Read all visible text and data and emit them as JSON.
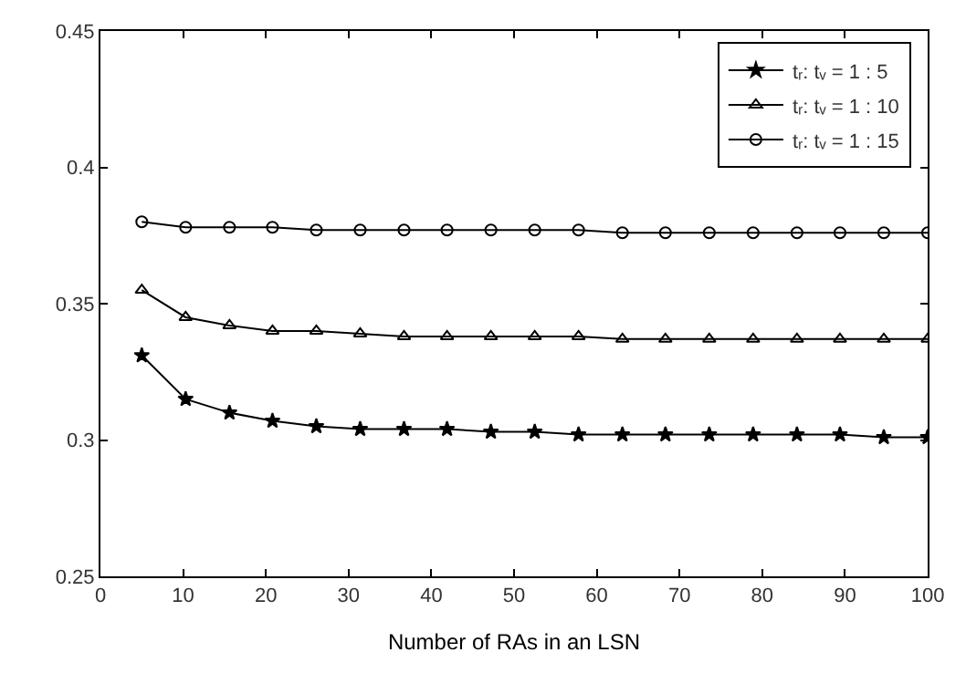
{
  "chart_data": {
    "type": "line",
    "xlabel": "Number of RAs in an LSN",
    "x": [
      5,
      10.3,
      15.6,
      20.8,
      26.1,
      31.4,
      36.7,
      41.9,
      47.2,
      52.5,
      57.8,
      63.1,
      68.3,
      73.6,
      78.9,
      84.2,
      89.4,
      94.7,
      100
    ],
    "series": [
      {
        "name": "tᵣ: tᵥ = 1 : 5",
        "color": "#000000",
        "marker": "star",
        "values": [
          0.331,
          0.315,
          0.31,
          0.307,
          0.305,
          0.304,
          0.304,
          0.304,
          0.303,
          0.303,
          0.302,
          0.302,
          0.302,
          0.302,
          0.302,
          0.302,
          0.302,
          0.301,
          0.301
        ]
      },
      {
        "name": "tᵣ: tᵥ = 1 : 10",
        "color": "#000000",
        "marker": "triangle",
        "values": [
          0.355,
          0.345,
          0.342,
          0.34,
          0.34,
          0.339,
          0.338,
          0.338,
          0.338,
          0.338,
          0.338,
          0.337,
          0.337,
          0.337,
          0.337,
          0.337,
          0.337,
          0.337,
          0.337
        ]
      },
      {
        "name": "tᵣ: tᵥ = 1 : 15",
        "color": "#000000",
        "marker": "circle",
        "values": [
          0.38,
          0.378,
          0.378,
          0.378,
          0.377,
          0.377,
          0.377,
          0.377,
          0.377,
          0.377,
          0.377,
          0.376,
          0.376,
          0.376,
          0.376,
          0.376,
          0.376,
          0.376,
          0.376
        ]
      }
    ],
    "xlim": [
      0,
      100
    ],
    "xticks": [
      0,
      10,
      20,
      30,
      40,
      50,
      60,
      70,
      80,
      90,
      100
    ],
    "ylim": [
      0.25,
      0.45
    ],
    "yticks": [
      0.25,
      0.3,
      0.35,
      0.4,
      0.45
    ],
    "legend": "top right",
    "line_style": "solid"
  }
}
